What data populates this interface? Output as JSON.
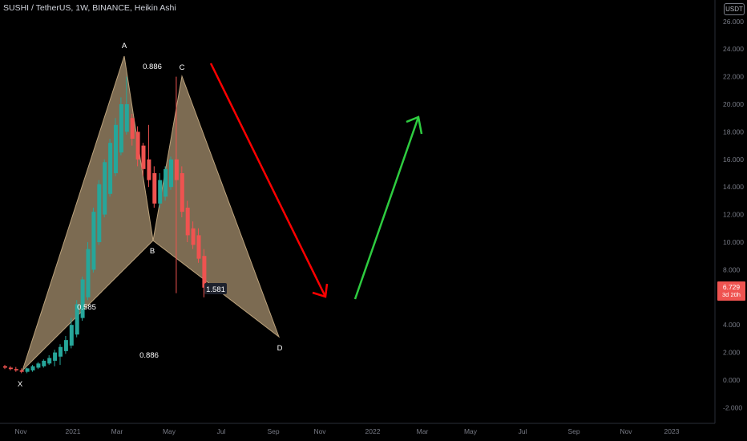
{
  "header": {
    "symbol_title": "SUSHI / TetherUS, 1W, BINANCE, Heikin Ashi",
    "currency_badge": "USDT"
  },
  "price_tag": {
    "value": "6.729",
    "countdown": "3d 20h",
    "color": "#ef5350"
  },
  "colors": {
    "up": "#26a69a",
    "down": "#ef5350",
    "pattern_fill": "#c8ad84",
    "bearish_arrow": "#ff0000",
    "bullish_arrow": "#2ecc40",
    "axis_text": "#787b86"
  },
  "chart_data": {
    "type": "candlestick",
    "y_ticks": [
      "-2.000",
      "0.000",
      "2.000",
      "4.000",
      "6.000",
      "8.000",
      "10.000",
      "12.000",
      "14.000",
      "16.000",
      "18.000",
      "20.000",
      "22.000",
      "24.000",
      "26.000"
    ],
    "x_ticks": [
      "Nov",
      "2021",
      "Mar",
      "May",
      "Jul",
      "Sep",
      "Nov",
      "2022",
      "Mar",
      "May",
      "Jul",
      "Sep",
      "Nov",
      "2023"
    ],
    "ylim": [
      -2.8,
      27.2
    ],
    "grid": false,
    "candles": [
      {
        "i": 0,
        "o": 1.0,
        "h": 1.1,
        "l": 0.8,
        "c": 0.9
      },
      {
        "i": 1,
        "o": 0.9,
        "h": 1.0,
        "l": 0.7,
        "c": 0.8
      },
      {
        "i": 2,
        "o": 0.8,
        "h": 0.95,
        "l": 0.6,
        "c": 0.7
      },
      {
        "i": 3,
        "o": 0.7,
        "h": 0.85,
        "l": 0.5,
        "c": 0.6
      },
      {
        "i": 4,
        "o": 0.6,
        "h": 0.9,
        "l": 0.5,
        "c": 0.85
      },
      {
        "i": 5,
        "o": 0.7,
        "h": 1.1,
        "l": 0.6,
        "c": 1.0
      },
      {
        "i": 6,
        "o": 0.9,
        "h": 1.3,
        "l": 0.8,
        "c": 1.2
      },
      {
        "i": 7,
        "o": 1.0,
        "h": 1.5,
        "l": 0.9,
        "c": 1.4
      },
      {
        "i": 8,
        "o": 1.2,
        "h": 1.8,
        "l": 1.1,
        "c": 1.6
      },
      {
        "i": 9,
        "o": 1.4,
        "h": 2.2,
        "l": 1.0,
        "c": 2.0
      },
      {
        "i": 10,
        "o": 1.7,
        "h": 2.6,
        "l": 1.1,
        "c": 2.4
      },
      {
        "i": 11,
        "o": 2.1,
        "h": 3.2,
        "l": 1.9,
        "c": 2.9
      },
      {
        "i": 12,
        "o": 2.5,
        "h": 4.5,
        "l": 2.3,
        "c": 4.0
      },
      {
        "i": 13,
        "o": 3.3,
        "h": 5.8,
        "l": 3.1,
        "c": 5.5
      },
      {
        "i": 14,
        "o": 4.5,
        "h": 7.5,
        "l": 4.3,
        "c": 7.3
      },
      {
        "i": 15,
        "o": 6.0,
        "h": 10.0,
        "l": 5.8,
        "c": 9.5
      },
      {
        "i": 16,
        "o": 8.0,
        "h": 12.5,
        "l": 7.8,
        "c": 12.2
      },
      {
        "i": 17,
        "o": 10.0,
        "h": 14.5,
        "l": 9.8,
        "c": 14.2
      },
      {
        "i": 18,
        "o": 12.0,
        "h": 16.0,
        "l": 11.8,
        "c": 15.8
      },
      {
        "i": 19,
        "o": 13.5,
        "h": 17.5,
        "l": 13.3,
        "c": 17.2
      },
      {
        "i": 20,
        "o": 15.0,
        "h": 19.0,
        "l": 14.8,
        "c": 18.5
      },
      {
        "i": 21,
        "o": 16.5,
        "h": 20.5,
        "l": 16.3,
        "c": 20.0
      },
      {
        "i": 22,
        "o": 18.0,
        "h": 22.0,
        "l": 17.8,
        "c": 20.0
      },
      {
        "i": 23,
        "o": 19.0,
        "h": 19.3,
        "l": 17.0,
        "c": 17.5
      },
      {
        "i": 24,
        "o": 18.0,
        "h": 18.4,
        "l": 15.5,
        "c": 16.0
      },
      {
        "i": 25,
        "o": 17.0,
        "h": 17.2,
        "l": 14.8,
        "c": 15.3
      },
      {
        "i": 26,
        "o": 16.0,
        "h": 18.5,
        "l": 14.0,
        "c": 14.5
      },
      {
        "i": 27,
        "o": 15.0,
        "h": 15.5,
        "l": 12.5,
        "c": 12.8
      },
      {
        "i": 28,
        "o": 12.8,
        "h": 15.0,
        "l": 12.5,
        "c": 14.5
      },
      {
        "i": 29,
        "o": 13.3,
        "h": 15.5,
        "l": 13.0,
        "c": 15.3
      },
      {
        "i": 30,
        "o": 14.0,
        "h": 16.2,
        "l": 13.8,
        "c": 16.0
      },
      {
        "i": 31,
        "o": 16.0,
        "h": 22.0,
        "l": 6.3,
        "c": 14.5
      },
      {
        "i": 32,
        "o": 15.0,
        "h": 15.5,
        "l": 11.8,
        "c": 12.2
      },
      {
        "i": 33,
        "o": 12.5,
        "h": 13.0,
        "l": 10.0,
        "c": 10.5
      },
      {
        "i": 34,
        "o": 11.0,
        "h": 11.5,
        "l": 9.5,
        "c": 9.8
      },
      {
        "i": 35,
        "o": 10.5,
        "h": 11.0,
        "l": 8.5,
        "c": 8.8
      },
      {
        "i": 36,
        "o": 9.0,
        "h": 9.5,
        "l": 6.0,
        "c": 6.7
      }
    ],
    "harmonic_pattern": {
      "points": [
        {
          "label": "X",
          "value": 0.6
        },
        {
          "label": "A",
          "value": 23.4
        },
        {
          "label": "B",
          "value": 10.0
        },
        {
          "label": "C",
          "value": 22.2
        },
        {
          "label": "D",
          "value": 3.1
        }
      ],
      "ratios": [
        "0.886",
        "0.886",
        "0.585",
        "1.581"
      ]
    },
    "annotations": [
      {
        "type": "arrow",
        "direction": "down",
        "color": "#ff0000"
      },
      {
        "type": "arrow",
        "direction": "up",
        "color": "#2ecc40"
      }
    ]
  }
}
